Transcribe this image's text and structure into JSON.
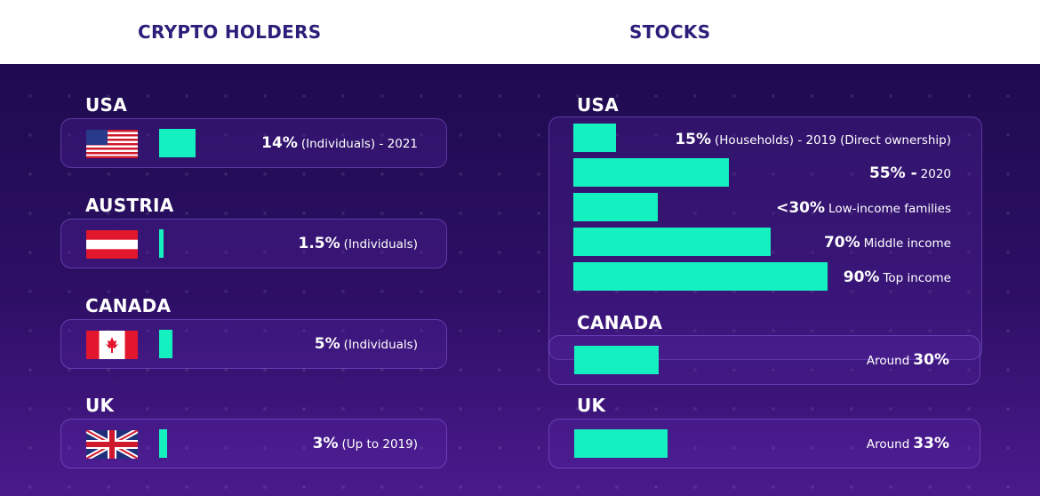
{
  "headers": {
    "crypto": "CRYPTO HOLDERS",
    "stocks": "STOCKS"
  },
  "colors": {
    "bar": "#15f0c0",
    "background": "#2e0f66",
    "header_text": "#2b1f7a"
  },
  "chart_data": [
    {
      "type": "bar",
      "title": "CRYPTO HOLDERS",
      "categories": [
        "USA",
        "AUSTRIA",
        "CANADA",
        "UK"
      ],
      "values": [
        14,
        1.5,
        5,
        3
      ],
      "labels": [
        {
          "value": "14%",
          "note": "(Individuals) - 2021"
        },
        {
          "value": "1.5%",
          "note": "(Individuals)"
        },
        {
          "value": "5%",
          "note": "(Individuals)"
        },
        {
          "value": "3%",
          "note": "(Up to 2019)"
        }
      ],
      "flags": [
        "usa-flag-icon",
        "austria-flag-icon",
        "canada-flag-icon",
        "uk-flag-icon"
      ]
    },
    {
      "type": "bar",
      "title": "STOCKS",
      "groups": [
        {
          "country": "USA",
          "rows": [
            {
              "value": 15,
              "big": "15%",
              "note": "(Households) - 2019 (Direct ownership)"
            },
            {
              "value": 55,
              "big": "55% -",
              "note": "2020"
            },
            {
              "value": 30,
              "big": "<30%",
              "note": "Low-income families"
            },
            {
              "value": 70,
              "big": "70%",
              "note": "Middle income"
            },
            {
              "value": 90,
              "big": "90%",
              "note": "Top income"
            }
          ]
        },
        {
          "country": "CANADA",
          "rows": [
            {
              "value": 30,
              "prefix": "Around",
              "big": "30%"
            }
          ]
        },
        {
          "country": "UK",
          "rows": [
            {
              "value": 33,
              "prefix": "Around",
              "big": "33%"
            }
          ]
        }
      ]
    }
  ]
}
